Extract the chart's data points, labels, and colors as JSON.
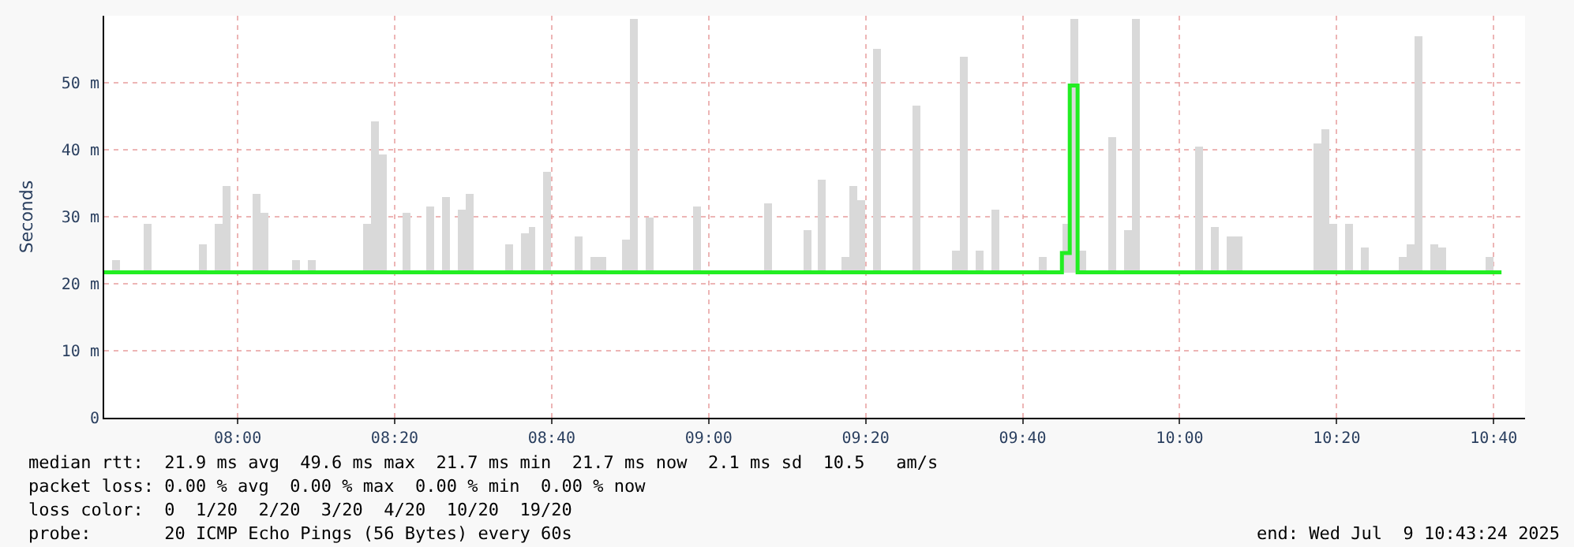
{
  "chart_data": {
    "type": "bar",
    "ylabel": "Seconds",
    "xlim": [
      "2025-07-09T07:43",
      "2025-07-09T10:44"
    ],
    "xticks": [
      {
        "value": "2025-07-09T08:00",
        "label": "08:00"
      },
      {
        "value": "2025-07-09T08:20",
        "label": "08:20"
      },
      {
        "value": "2025-07-09T08:40",
        "label": "08:40"
      },
      {
        "value": "2025-07-09T09:00",
        "label": "09:00"
      },
      {
        "value": "2025-07-09T09:20",
        "label": "09:20"
      },
      {
        "value": "2025-07-09T09:40",
        "label": "09:40"
      },
      {
        "value": "2025-07-09T10:00",
        "label": "10:00"
      },
      {
        "value": "2025-07-09T10:20",
        "label": "10:20"
      },
      {
        "value": "2025-07-09T10:40",
        "label": "10:40"
      }
    ],
    "ylim": [
      0,
      60
    ],
    "yticks": [
      0,
      {
        "value": 10,
        "label": "10 m"
      },
      {
        "value": 20,
        "label": "20 m"
      },
      {
        "value": 30,
        "label": "30 m"
      },
      {
        "value": 40,
        "label": "40 m"
      },
      {
        "value": 50,
        "label": "50 m"
      }
    ],
    "grid": true,
    "series": [
      {
        "color": "#d9d9d9",
        "x": [
          "2025-07-09T07:44",
          "2025-07-09T07:48",
          "2025-07-09T07:55",
          "2025-07-09T07:57",
          "2025-07-09T07:58",
          "2025-07-09T08:02",
          "2025-07-09T08:03",
          "2025-07-09T08:07",
          "2025-07-09T08:09",
          "2025-07-09T08:16",
          "2025-07-09T08:17",
          "2025-07-09T08:18",
          "2025-07-09T08:21",
          "2025-07-09T08:24",
          "2025-07-09T08:26",
          "2025-07-09T08:28",
          "2025-07-09T08:29",
          "2025-07-09T08:34",
          "2025-07-09T08:36",
          "2025-07-09T08:37",
          "2025-07-09T08:39",
          "2025-07-09T08:43",
          "2025-07-09T08:45",
          "2025-07-09T08:46",
          "2025-07-09T08:49",
          "2025-07-09T08:50",
          "2025-07-09T08:52",
          "2025-07-09T08:58",
          "2025-07-09T09:07",
          "2025-07-09T09:12",
          "2025-07-09T09:14",
          "2025-07-09T09:17",
          "2025-07-09T09:18",
          "2025-07-09T09:19",
          "2025-07-09T09:21",
          "2025-07-09T09:26",
          "2025-07-09T09:31",
          "2025-07-09T09:32",
          "2025-07-09T09:34",
          "2025-07-09T09:36",
          "2025-07-09T09:42",
          "2025-07-09T09:45",
          "2025-07-09T09:46",
          "2025-07-09T09:47",
          "2025-07-09T09:51",
          "2025-07-09T09:53",
          "2025-07-09T09:54",
          "2025-07-09T10:02",
          "2025-07-09T10:04",
          "2025-07-09T10:06",
          "2025-07-09T10:07",
          "2025-07-09T10:17",
          "2025-07-09T10:18",
          "2025-07-09T10:19",
          "2025-07-09T10:21",
          "2025-07-09T10:23",
          "2025-07-09T10:28",
          "2025-07-09T10:29",
          "2025-07-09T10:30",
          "2025-07-09T10:32",
          "2025-07-09T10:33",
          "2025-07-09T10:39"
        ],
        "base": [
          21.7,
          21.7,
          21.7,
          21.7,
          21.7,
          21.7,
          21.7,
          21.7,
          21.7,
          21.7,
          21.7,
          21.7,
          21.7,
          21.7,
          21.7,
          21.7,
          21.7,
          21.7,
          21.7,
          21.7,
          21.7,
          21.7,
          21.7,
          21.7,
          21.7,
          21.7,
          21.7,
          21.7,
          21.7,
          21.7,
          21.7,
          21.7,
          21.7,
          21.7,
          21.7,
          21.7,
          21.7,
          21.7,
          21.7,
          21.7,
          21.7,
          21.7,
          21.7,
          21.7,
          21.7,
          21.7,
          21.7,
          21.7,
          21.7,
          21.7,
          21.7,
          21.7,
          21.7,
          21.7,
          21.7,
          21.7,
          21.7,
          21.7,
          21.7,
          21.7,
          21.7,
          21.7
        ],
        "values": [
          1.8,
          7.3,
          4.3,
          7.3,
          12.8,
          11.6,
          8.8,
          1.8,
          1.8,
          7.3,
          22.6,
          17.6,
          8.8,
          9.8,
          11.3,
          9.3,
          11.8,
          4.3,
          5.8,
          6.8,
          15.0,
          5.3,
          2.3,
          2.3,
          4.8,
          37.8,
          8.3,
          9.8,
          10.3,
          6.3,
          13.8,
          2.3,
          12.8,
          10.8,
          33.3,
          24.8,
          3.3,
          32.3,
          3.3,
          9.3,
          2.3,
          7.3,
          37.8,
          3.3,
          20.3,
          6.3,
          37.8,
          18.8,
          6.8,
          5.3,
          5.3,
          19.3,
          21.3,
          7.3,
          7.3,
          3.8,
          2.3,
          4.3,
          35.3,
          4.3,
          3.8,
          2.3
        ]
      },
      {
        "type": "step",
        "color": "#22ee22",
        "x": [
          "2025-07-09T07:43",
          "2025-07-09T09:44",
          "2025-07-09T09:45",
          "2025-07-09T09:46",
          "2025-07-09T09:47",
          "2025-07-09T10:41"
        ],
        "values": [
          21.7,
          21.7,
          24.6,
          49.6,
          21.7,
          21.7
        ]
      }
    ],
    "annotations": [
      "median rtt:  21.9 ms avg  49.6 ms max  21.7 ms min  21.7 ms now  2.1 ms sd  10.5   am/s",
      "packet loss: 0.00 % avg  0.00 % max  0.00 % min  0.00 % now",
      "loss color:  0  1/20  2/20  3/20  4/20  10/20  19/20",
      "probe:       20 ICMP Echo Pings (56 Bytes) every 60s",
      "end: Wed Jul  9 10:43:24 2025"
    ]
  }
}
